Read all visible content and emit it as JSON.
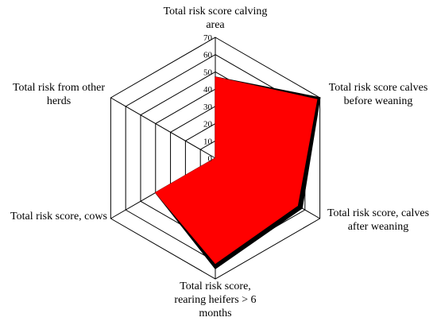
{
  "chart_data": {
    "type": "radar",
    "axes": [
      "Total risk score calving area",
      "Total risk score calves before weaning",
      "Total risk score, calves after weaning",
      "Total risk score, rearing heifers > 6 months",
      "Total risk score, cows",
      "Total risk from other herds"
    ],
    "axis_label_lines": [
      [
        "Total risk score calving",
        "area"
      ],
      [
        "Total risk score calves",
        "before weaning"
      ],
      [
        "Total risk score, calves",
        "after weaning"
      ],
      [
        "Total risk score,",
        "rearing heifers > 6",
        "months"
      ],
      [
        "Total risk score, cows"
      ],
      [
        "Total risk from other",
        "herds"
      ]
    ],
    "ticks": [
      0,
      10,
      20,
      30,
      40,
      50,
      60,
      70
    ],
    "tick_labels": [
      "0",
      "10",
      "20",
      "30",
      "40",
      "50",
      "60",
      "70"
    ],
    "rlim": [
      0,
      70
    ],
    "series": [
      {
        "values": [
          47,
          70,
          58,
          64,
          40,
          0
        ],
        "color": "#000000"
      },
      {
        "values": [
          47,
          68,
          55,
          61,
          40,
          0
        ],
        "color": "#ff0000"
      }
    ],
    "grid": true,
    "legend": "none"
  }
}
